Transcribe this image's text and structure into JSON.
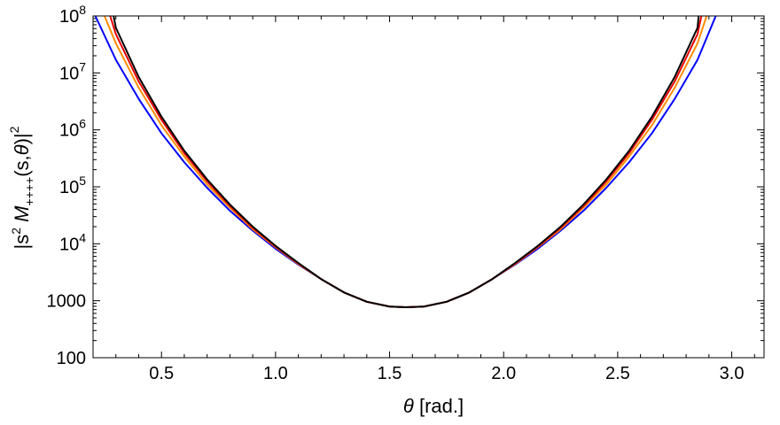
{
  "chart_data": {
    "type": "line",
    "title": "",
    "xlabel_symbol": "θ",
    "xlabel_unit": " [rad.]",
    "ylabel_parts": {
      "open": "|s",
      "sup": "2",
      "mid": " M",
      "sub": "++++",
      "args": "(s,",
      "theta": "θ",
      "close": ")|",
      "power": "2"
    },
    "xlim": [
      0.2,
      3.1416
    ],
    "ylim": [
      100,
      100000000
    ],
    "y_scale": "log",
    "grid": false,
    "x_ticks": [
      {
        "value": 0.5,
        "label": "0.5"
      },
      {
        "value": 1.0,
        "label": "1.0"
      },
      {
        "value": 1.5,
        "label": "1.5"
      },
      {
        "value": 2.0,
        "label": "2.0"
      },
      {
        "value": 2.5,
        "label": "2.5"
      },
      {
        "value": 3.0,
        "label": "3.0"
      }
    ],
    "y_ticks": [
      {
        "value": 100,
        "label": "100"
      },
      {
        "value": 1000,
        "label": "1000"
      },
      {
        "value": 10000,
        "base": "10",
        "exp": "4"
      },
      {
        "value": 100000,
        "base": "10",
        "exp": "5"
      },
      {
        "value": 1000000,
        "base": "10",
        "exp": "6"
      },
      {
        "value": 10000000,
        "base": "10",
        "exp": "7"
      },
      {
        "value": 100000000,
        "base": "10",
        "exp": "8"
      }
    ],
    "series": [
      {
        "color": "#0000ff",
        "points": [
          [
            0.21,
            100000000
          ],
          [
            0.3,
            17000000
          ],
          [
            0.4,
            3500000
          ],
          [
            0.5,
            870000
          ],
          [
            0.6,
            270000
          ],
          [
            0.7,
            96000
          ],
          [
            0.8,
            38000
          ],
          [
            0.9,
            17000
          ],
          [
            1.0,
            8200
          ],
          [
            1.1,
            4300
          ],
          [
            1.2,
            2400
          ],
          [
            1.3,
            1400
          ],
          [
            1.4,
            960
          ],
          [
            1.5,
            790
          ],
          [
            1.5708,
            770
          ],
          [
            1.65,
            790
          ],
          [
            1.75,
            960
          ],
          [
            1.85,
            1400
          ],
          [
            1.95,
            2400
          ],
          [
            2.05,
            4300
          ],
          [
            2.15,
            8200
          ],
          [
            2.25,
            17000
          ],
          [
            2.35,
            38000
          ],
          [
            2.45,
            96000
          ],
          [
            2.55,
            270000
          ],
          [
            2.65,
            870000
          ],
          [
            2.75,
            3500000
          ],
          [
            2.85,
            17000000
          ],
          [
            2.93,
            100000000
          ]
        ]
      },
      {
        "color": "#ff8c00",
        "points": [
          [
            0.25,
            100000000
          ],
          [
            0.3,
            33000000
          ],
          [
            0.4,
            5500000
          ],
          [
            0.5,
            1200000
          ],
          [
            0.6,
            340000
          ],
          [
            0.7,
            110000
          ],
          [
            0.8,
            43000
          ],
          [
            0.9,
            18000
          ],
          [
            1.0,
            8700
          ],
          [
            1.1,
            4400
          ],
          [
            1.2,
            2400
          ],
          [
            1.3,
            1400
          ],
          [
            1.4,
            960
          ],
          [
            1.5,
            790
          ],
          [
            1.5708,
            770
          ],
          [
            1.65,
            790
          ],
          [
            1.75,
            960
          ],
          [
            1.85,
            1400
          ],
          [
            1.95,
            2400
          ],
          [
            2.05,
            4400
          ],
          [
            2.15,
            8700
          ],
          [
            2.25,
            18000
          ],
          [
            2.35,
            43000
          ],
          [
            2.45,
            110000
          ],
          [
            2.55,
            340000
          ],
          [
            2.65,
            1200000
          ],
          [
            2.75,
            5500000
          ],
          [
            2.85,
            33000000
          ],
          [
            2.89,
            100000000
          ]
        ]
      },
      {
        "color": "#e60000",
        "points": [
          [
            0.275,
            100000000
          ],
          [
            0.3,
            48000000
          ],
          [
            0.4,
            7100000
          ],
          [
            0.5,
            1500000
          ],
          [
            0.6,
            390000
          ],
          [
            0.7,
            125000
          ],
          [
            0.8,
            46000
          ],
          [
            0.9,
            19000
          ],
          [
            1.0,
            8900
          ],
          [
            1.1,
            4500
          ],
          [
            1.2,
            2400
          ],
          [
            1.3,
            1400
          ],
          [
            1.4,
            960
          ],
          [
            1.5,
            790
          ],
          [
            1.5708,
            770
          ],
          [
            1.65,
            790
          ],
          [
            1.75,
            960
          ],
          [
            1.85,
            1400
          ],
          [
            1.95,
            2400
          ],
          [
            2.05,
            4500
          ],
          [
            2.15,
            8900
          ],
          [
            2.25,
            19000
          ],
          [
            2.35,
            46000
          ],
          [
            2.45,
            125000
          ],
          [
            2.55,
            390000
          ],
          [
            2.65,
            1500000
          ],
          [
            2.75,
            7100000
          ],
          [
            2.85,
            48000000
          ],
          [
            2.867,
            100000000
          ]
        ]
      },
      {
        "color": "#000000",
        "points": [
          [
            0.29,
            100000000
          ],
          [
            0.3,
            62000000
          ],
          [
            0.4,
            8500000
          ],
          [
            0.5,
            1700000
          ],
          [
            0.6,
            430000
          ],
          [
            0.7,
            135000
          ],
          [
            0.8,
            49000
          ],
          [
            0.9,
            20000
          ],
          [
            1.0,
            9200
          ],
          [
            1.1,
            4600
          ],
          [
            1.2,
            2400
          ],
          [
            1.3,
            1400
          ],
          [
            1.4,
            960
          ],
          [
            1.5,
            790
          ],
          [
            1.5708,
            770
          ],
          [
            1.65,
            790
          ],
          [
            1.75,
            960
          ],
          [
            1.85,
            1400
          ],
          [
            1.95,
            2400
          ],
          [
            2.05,
            4600
          ],
          [
            2.15,
            9200
          ],
          [
            2.25,
            20000
          ],
          [
            2.35,
            49000
          ],
          [
            2.45,
            135000
          ],
          [
            2.55,
            430000
          ],
          [
            2.65,
            1700000
          ],
          [
            2.75,
            8500000
          ],
          [
            2.85,
            62000000
          ],
          [
            2.855,
            100000000
          ]
        ]
      }
    ]
  }
}
